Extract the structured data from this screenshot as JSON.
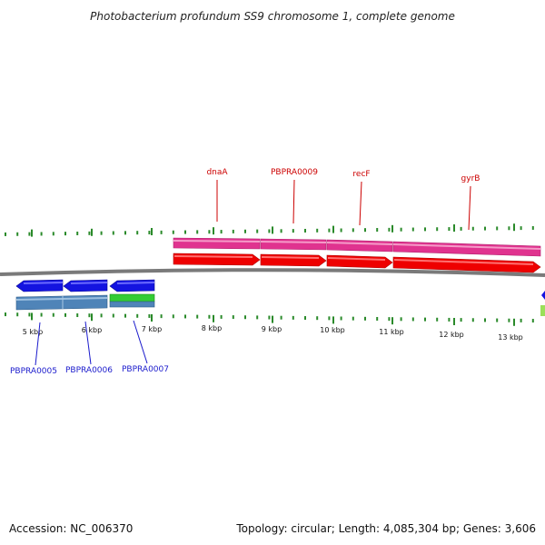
{
  "title": "Photobacterium profundum SS9 chromosome 1, complete genome",
  "footer": {
    "accession": "Accession: NC_006370",
    "summary": "Topology: circular; Length: 4,085,304 bp; Genes: 3,606"
  },
  "colors": {
    "backbone": "#7a7a7a",
    "tick": "#2a8a2a",
    "forward_cds": "#ee0000",
    "forward_gene": "#e0338f",
    "reverse_cds": "#1414e0",
    "reverse_gene": "#4f84b8",
    "rna": "#33cc33",
    "label_forward": "#cc0000",
    "label_reverse": "#1a1acc"
  },
  "axis": {
    "unit": "kbp",
    "tick_labels": [
      "5 kbp",
      "6 kbp",
      "7 kbp",
      "8 kbp",
      "9 kbp",
      "10 kbp",
      "11 kbp",
      "12 kbp",
      "13 kbp"
    ]
  },
  "genes_forward": [
    {
      "label": "dnaA"
    },
    {
      "label": "PBPRA0009"
    },
    {
      "label": "recF"
    },
    {
      "label": "gyrB"
    }
  ],
  "genes_reverse": [
    {
      "label": "PBPRA0005"
    },
    {
      "label": "PBPRA0006"
    },
    {
      "label": "PBPRA0007"
    }
  ]
}
